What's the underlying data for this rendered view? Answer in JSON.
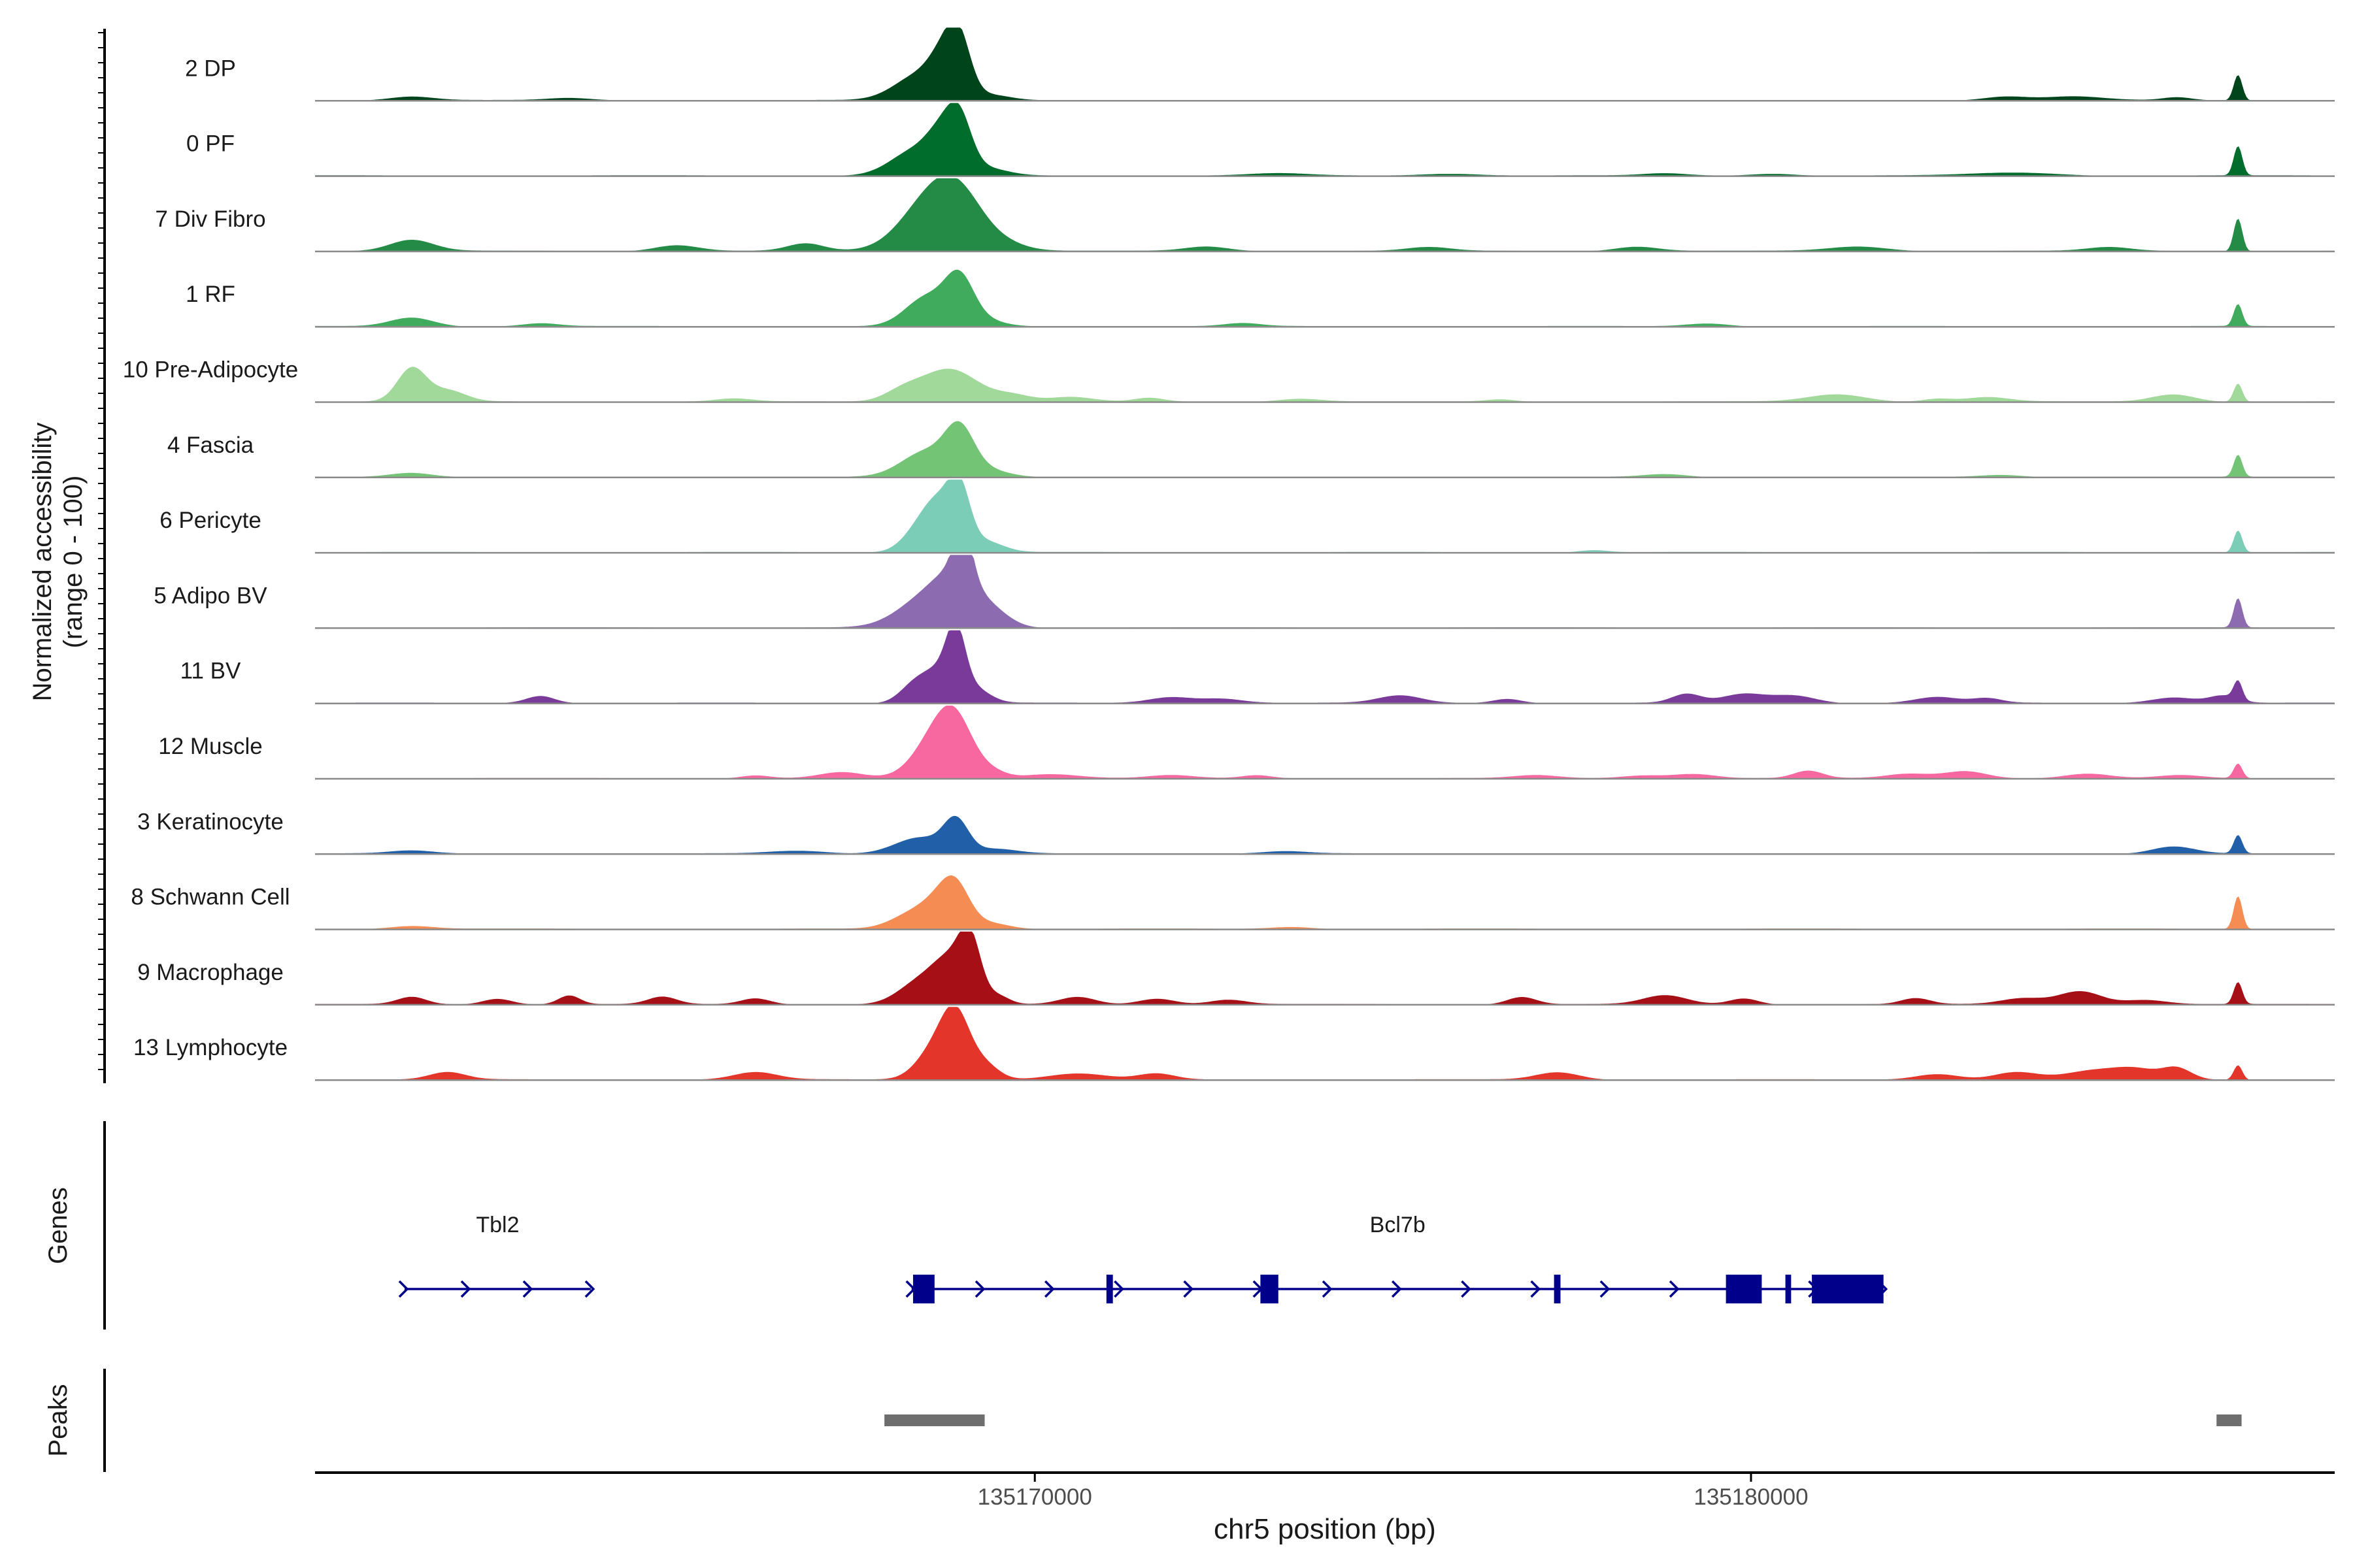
{
  "figure": {
    "y_axis_title_line1": "Normalized accessibility",
    "y_axis_title_line2": "(range 0 - 100)",
    "genes_panel_label": "Genes",
    "peaks_panel_label": "Peaks",
    "x_axis_title": "chr5 position (bp)"
  },
  "chart_data": {
    "type": "area",
    "title": "",
    "xlabel": "chr5 position (bp)",
    "ylabel": "Normalized accessibility (range 0 - 100)",
    "xlim": [
      135159950,
      135188150
    ],
    "ylim": [
      0,
      100
    ],
    "x_ticks": [
      135170000,
      135180000
    ],
    "x_tick_labels": [
      "135170000",
      "135180000"
    ],
    "grid": false,
    "legend": "none",
    "tracks": [
      {
        "name": "2 DP",
        "color": "#00441b",
        "bumps": [
          [
            135161300,
            300,
            5
          ],
          [
            135163500,
            300,
            3
          ],
          [
            135168400,
            350,
            35
          ],
          [
            135168750,
            200,
            48
          ],
          [
            135168950,
            160,
            62
          ],
          [
            135169350,
            300,
            8
          ],
          [
            135183550,
            300,
            5
          ],
          [
            135184500,
            400,
            5
          ],
          [
            135185950,
            200,
            4
          ],
          [
            135186800,
            60,
            35
          ]
        ]
      },
      {
        "name": "0 PF",
        "color": "#006d2c",
        "bumps": [
          [
            135168350,
            350,
            35
          ],
          [
            135168700,
            200,
            40
          ],
          [
            135168950,
            170,
            65
          ],
          [
            135169300,
            300,
            10
          ],
          [
            135173400,
            400,
            3
          ],
          [
            135175800,
            400,
            3
          ],
          [
            135178800,
            300,
            3
          ],
          [
            135180300,
            300,
            3
          ],
          [
            135183700,
            600,
            4
          ],
          [
            135186800,
            60,
            40
          ]
        ]
      },
      {
        "name": "7 Div Fibro",
        "color": "#238b45",
        "bumps": [
          [
            135161300,
            300,
            15
          ],
          [
            135165000,
            300,
            8
          ],
          [
            135166800,
            250,
            10
          ],
          [
            135168500,
            400,
            60
          ],
          [
            135168950,
            350,
            65
          ],
          [
            135169600,
            300,
            8
          ],
          [
            135172400,
            300,
            6
          ],
          [
            135175500,
            300,
            5
          ],
          [
            135178400,
            300,
            6
          ],
          [
            135181500,
            400,
            6
          ],
          [
            135185000,
            300,
            5
          ],
          [
            135186800,
            60,
            45
          ]
        ]
      },
      {
        "name": "1 RF",
        "color": "#41ab5d",
        "bumps": [
          [
            135161300,
            300,
            12
          ],
          [
            135163100,
            250,
            4
          ],
          [
            135168500,
            300,
            40
          ],
          [
            135168950,
            200,
            60
          ],
          [
            135169300,
            250,
            8
          ],
          [
            135172900,
            250,
            4
          ],
          [
            135179400,
            300,
            4
          ],
          [
            135186800,
            60,
            30
          ]
        ]
      },
      {
        "name": "10 Pre-Adipocyte",
        "color": "#a1d99b",
        "bumps": [
          [
            135161300,
            200,
            45
          ],
          [
            135161800,
            250,
            15
          ],
          [
            135165800,
            250,
            4
          ],
          [
            135168150,
            250,
            12
          ],
          [
            135168800,
            400,
            45
          ],
          [
            135169700,
            250,
            8
          ],
          [
            135170500,
            300,
            6
          ],
          [
            135171600,
            200,
            5
          ],
          [
            135173700,
            300,
            4
          ],
          [
            135176500,
            200,
            3
          ],
          [
            135181200,
            400,
            10
          ],
          [
            135182600,
            200,
            4
          ],
          [
            135183300,
            300,
            6
          ],
          [
            135185900,
            300,
            10
          ],
          [
            135186800,
            60,
            25
          ]
        ]
      },
      {
        "name": "4 Fascia",
        "color": "#74c476",
        "bumps": [
          [
            135161300,
            300,
            6
          ],
          [
            135168500,
            350,
            35
          ],
          [
            135168950,
            200,
            55
          ],
          [
            135169300,
            300,
            10
          ],
          [
            135178800,
            300,
            4
          ],
          [
            135183500,
            300,
            3
          ],
          [
            135186800,
            60,
            30
          ]
        ]
      },
      {
        "name": "6 Pericyte",
        "color": "#7bcdb7",
        "bumps": [
          [
            135168450,
            250,
            40
          ],
          [
            135168700,
            200,
            45
          ],
          [
            135168950,
            150,
            75
          ],
          [
            135169300,
            250,
            15
          ],
          [
            135177800,
            200,
            3
          ],
          [
            135186800,
            60,
            30
          ]
        ]
      },
      {
        "name": "5 Adipo BV",
        "color": "#8c6bb1",
        "bumps": [
          [
            135168500,
            400,
            40
          ],
          [
            135168950,
            300,
            55
          ],
          [
            135169000,
            120,
            70
          ],
          [
            135169450,
            250,
            15
          ],
          [
            135186800,
            60,
            40
          ]
        ]
      },
      {
        "name": "11 BV",
        "color": "#7a3a9a",
        "bumps": [
          [
            135163100,
            200,
            10
          ],
          [
            135168300,
            200,
            20
          ],
          [
            135168700,
            250,
            45
          ],
          [
            135168900,
            130,
            75
          ],
          [
            135169200,
            200,
            15
          ],
          [
            135171900,
            300,
            8
          ],
          [
            135172600,
            300,
            6
          ],
          [
            135175100,
            300,
            10
          ],
          [
            135176600,
            200,
            6
          ],
          [
            135179100,
            200,
            12
          ],
          [
            135179900,
            300,
            12
          ],
          [
            135180600,
            300,
            10
          ],
          [
            135182600,
            300,
            8
          ],
          [
            135183300,
            200,
            6
          ],
          [
            135185900,
            300,
            8
          ],
          [
            135186600,
            200,
            10
          ],
          [
            135186800,
            60,
            25
          ]
        ]
      },
      {
        "name": "12 Muscle",
        "color": "#f768a1",
        "bumps": [
          [
            135166100,
            200,
            4
          ],
          [
            135167300,
            300,
            8
          ],
          [
            135168600,
            300,
            50
          ],
          [
            135168900,
            250,
            65
          ],
          [
            135169400,
            200,
            8
          ],
          [
            135170200,
            400,
            6
          ],
          [
            135171900,
            300,
            4
          ],
          [
            135173100,
            200,
            4
          ],
          [
            135177000,
            300,
            4
          ],
          [
            135178500,
            300,
            4
          ],
          [
            135179200,
            300,
            6
          ],
          [
            135180800,
            200,
            10
          ],
          [
            135182200,
            300,
            6
          ],
          [
            135183000,
            300,
            10
          ],
          [
            135184700,
            300,
            6
          ],
          [
            135186000,
            300,
            4
          ],
          [
            135186800,
            60,
            20
          ]
        ]
      },
      {
        "name": "3 Keratinocyte",
        "color": "#2160a8",
        "bumps": [
          [
            135161300,
            300,
            4
          ],
          [
            135166700,
            400,
            4
          ],
          [
            135168400,
            350,
            22
          ],
          [
            135168900,
            170,
            42
          ],
          [
            135169450,
            300,
            6
          ],
          [
            135173500,
            300,
            3
          ],
          [
            135185900,
            300,
            10
          ],
          [
            135186800,
            60,
            25
          ]
        ]
      },
      {
        "name": "8 Schwann Cell",
        "color": "#f58c54",
        "bumps": [
          [
            135161300,
            300,
            4
          ],
          [
            135168300,
            300,
            20
          ],
          [
            135168700,
            250,
            30
          ],
          [
            135168900,
            200,
            45
          ],
          [
            135169400,
            250,
            8
          ],
          [
            135173600,
            300,
            3
          ],
          [
            135186800,
            60,
            45
          ]
        ]
      },
      {
        "name": "9 Macrophage",
        "color": "#a50f15",
        "bumps": [
          [
            135161300,
            200,
            10
          ],
          [
            135162500,
            200,
            8
          ],
          [
            135163500,
            150,
            12
          ],
          [
            135164800,
            200,
            10
          ],
          [
            135166100,
            200,
            8
          ],
          [
            135168400,
            300,
            30
          ],
          [
            135168850,
            250,
            55
          ],
          [
            135169100,
            150,
            70
          ],
          [
            135169500,
            150,
            10
          ],
          [
            135170600,
            250,
            10
          ],
          [
            135171700,
            250,
            8
          ],
          [
            135172700,
            250,
            6
          ],
          [
            135176800,
            200,
            10
          ],
          [
            135178800,
            300,
            12
          ],
          [
            135179900,
            200,
            8
          ],
          [
            135182300,
            200,
            8
          ],
          [
            135183800,
            300,
            8
          ],
          [
            135184600,
            300,
            18
          ],
          [
            135185500,
            300,
            6
          ],
          [
            135186800,
            60,
            30
          ]
        ]
      },
      {
        "name": "13 Lymphocyte",
        "color": "#e4352b",
        "bumps": [
          [
            135161800,
            250,
            10
          ],
          [
            135166100,
            300,
            10
          ],
          [
            135168600,
            250,
            40
          ],
          [
            135168900,
            200,
            80
          ],
          [
            135169300,
            200,
            20
          ],
          [
            135170600,
            400,
            8
          ],
          [
            135171700,
            250,
            8
          ],
          [
            135177300,
            300,
            10
          ],
          [
            135182600,
            300,
            8
          ],
          [
            135183700,
            300,
            10
          ],
          [
            135184800,
            400,
            12
          ],
          [
            135185400,
            300,
            12
          ],
          [
            135185950,
            200,
            15
          ],
          [
            135186800,
            60,
            20
          ]
        ]
      }
    ],
    "genes": [
      {
        "name": "Tbl2",
        "start": 135161200,
        "end": 135163800,
        "strand": "+",
        "exons": []
      },
      {
        "name": "Bcl7b",
        "start": 135168280,
        "end": 135181850,
        "strand": "+",
        "exons": [
          [
            135168300,
            135168600
          ],
          [
            135171000,
            135171090
          ],
          [
            135173150,
            135173400
          ],
          [
            135177250,
            135177340
          ],
          [
            135179650,
            135180150
          ],
          [
            135180480,
            135180560
          ],
          [
            135180850,
            135181850
          ]
        ]
      }
    ],
    "peaks": [
      [
        135167900,
        135169300
      ],
      [
        135186500,
        135186850
      ]
    ]
  }
}
